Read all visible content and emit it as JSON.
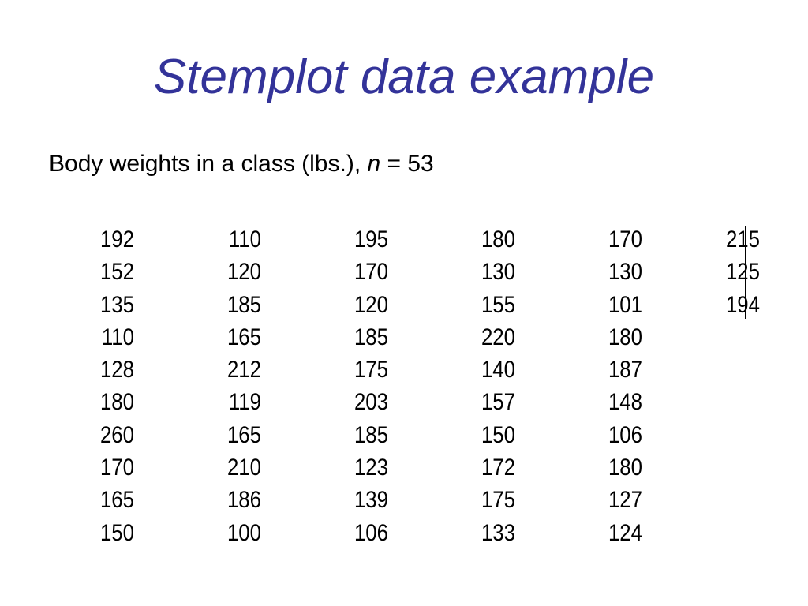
{
  "title": "Stemplot data example",
  "subtitle": {
    "prefix": "Body weights in a class (lbs.), ",
    "variable": "n",
    "suffix": " = 53"
  },
  "table": {
    "columns": [
      [
        "192",
        "152",
        "135",
        "110",
        "128",
        "180",
        "260",
        "170",
        "165",
        "150"
      ],
      [
        "110",
        "120",
        "185",
        "165",
        "212",
        "119",
        "165",
        "210",
        "186",
        "100"
      ],
      [
        "195",
        "170",
        "120",
        "185",
        "175",
        "203",
        "185",
        "123",
        "139",
        "106"
      ],
      [
        "180",
        "130",
        "155",
        "220",
        "140",
        "157",
        "150",
        "172",
        "175",
        "133"
      ],
      [
        "170",
        "130",
        "101",
        "180",
        "187",
        "148",
        "106",
        "180",
        "127",
        "124"
      ],
      [
        "215",
        "125",
        "194"
      ]
    ]
  }
}
